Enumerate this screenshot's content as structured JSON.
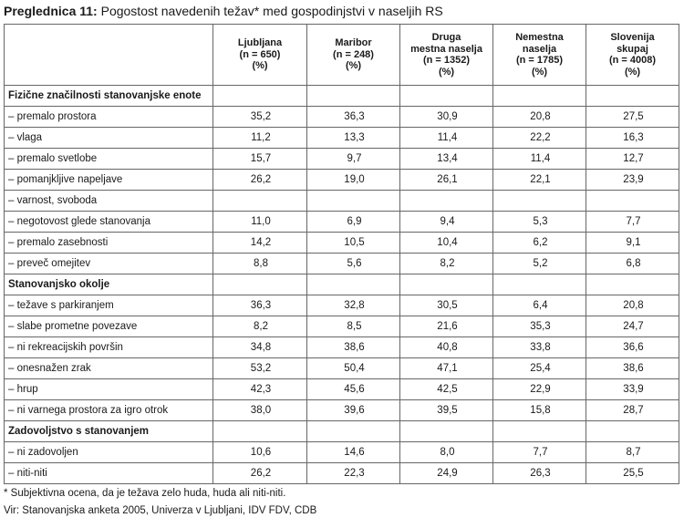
{
  "caption": {
    "label": "Preglednica 11:",
    "title": "Pogostost navedenih težav* med gospodinjstvi v naseljih RS"
  },
  "table": {
    "columns": [
      [
        "Ljubljana",
        "(n = 650)",
        "(%)"
      ],
      [
        "Maribor",
        "(n = 248)",
        "(%)"
      ],
      [
        "Druga",
        "mestna naselja",
        "(n = 1352)",
        "(%)"
      ],
      [
        "Nemestna",
        "naselja",
        "(n = 1785)",
        "(%)"
      ],
      [
        "Slovenija",
        "skupaj",
        "(n = 4008)",
        "(%)"
      ]
    ],
    "rows": [
      {
        "label": "Fizične značilnosti stanovanjske enote",
        "section": true,
        "values": [
          "",
          "",
          "",
          "",
          ""
        ]
      },
      {
        "label": "– premalo prostora",
        "values": [
          "35,2",
          "36,3",
          "30,9",
          "20,8",
          "27,5"
        ]
      },
      {
        "label": "– vlaga",
        "values": [
          "11,2",
          "13,3",
          "11,4",
          "22,2",
          "16,3"
        ]
      },
      {
        "label": "– premalo svetlobe",
        "values": [
          "15,7",
          "9,7",
          "13,4",
          "11,4",
          "12,7"
        ]
      },
      {
        "label": "– pomanjkljive napeljave",
        "values": [
          "26,2",
          "19,0",
          "26,1",
          "22,1",
          "23,9"
        ]
      },
      {
        "label": "– varnost, svoboda",
        "values": [
          "",
          "",
          "",
          "",
          ""
        ]
      },
      {
        "label": "– negotovost glede stanovanja",
        "values": [
          "11,0",
          "6,9",
          "9,4",
          "5,3",
          "7,7"
        ]
      },
      {
        "label": "– premalo zasebnosti",
        "values": [
          "14,2",
          "10,5",
          "10,4",
          "6,2",
          "9,1"
        ]
      },
      {
        "label": "– preveč omejitev",
        "values": [
          "8,8",
          "5,6",
          "8,2",
          "5,2",
          "6,8"
        ]
      },
      {
        "label": "Stanovanjsko okolje",
        "section": true,
        "values": [
          "",
          "",
          "",
          "",
          ""
        ]
      },
      {
        "label": "– težave s parkiranjem",
        "values": [
          "36,3",
          "32,8",
          "30,5",
          "6,4",
          "20,8"
        ]
      },
      {
        "label": "– slabe prometne povezave",
        "values": [
          "8,2",
          "8,5",
          "21,6",
          "35,3",
          "24,7"
        ]
      },
      {
        "label": "– ni rekreacijskih površin",
        "values": [
          "34,8",
          "38,6",
          "40,8",
          "33,8",
          "36,6"
        ]
      },
      {
        "label": "– onesnažen zrak",
        "values": [
          "53,2",
          "50,4",
          "47,1",
          "25,4",
          "38,6"
        ]
      },
      {
        "label": "– hrup",
        "values": [
          "42,3",
          "45,6",
          "42,5",
          "22,9",
          "33,9"
        ]
      },
      {
        "label": "– ni varnega prostora za igro otrok",
        "values": [
          "38,0",
          "39,6",
          "39,5",
          "15,8",
          "28,7"
        ]
      },
      {
        "label": "Zadovoljstvo s stanovanjem",
        "section": true,
        "values": [
          "",
          "",
          "",
          "",
          ""
        ]
      },
      {
        "label": "– ni zadovoljen",
        "values": [
          "10,6",
          "14,6",
          "8,0",
          "7,7",
          "8,7"
        ]
      },
      {
        "label": "– niti-niti",
        "values": [
          "26,2",
          "22,3",
          "24,9",
          "26,3",
          "25,5"
        ]
      }
    ]
  },
  "footnotes": {
    "note": "* Subjektivna ocena, da je težava zelo huda, huda ali niti-niti.",
    "source": "Vir: Stanovanjska anketa 2005, Univerza v Ljubljani, IDV FDV, CDB"
  }
}
